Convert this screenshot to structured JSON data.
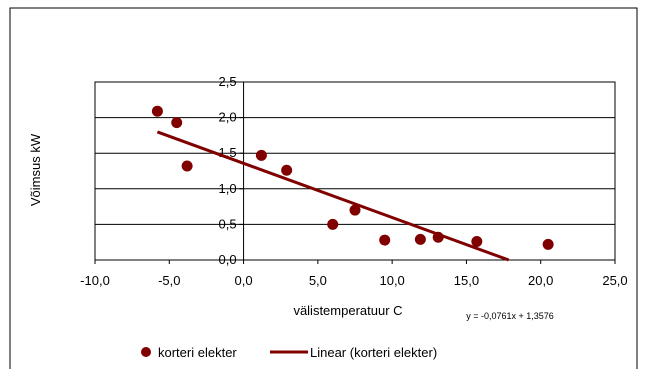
{
  "chart_data": {
    "type": "scatter",
    "title": "",
    "xlabel": "välistemperatuur C",
    "ylabel": "Võimsus kW",
    "xlim": [
      -10,
      25
    ],
    "ylim": [
      0,
      2.5
    ],
    "x_ticks": [
      "-10,0",
      "-5,0",
      "0,0",
      "5,0",
      "10,0",
      "15,0",
      "20,0",
      "25,0"
    ],
    "y_ticks": [
      "0,0",
      "0,5",
      "1,0",
      "1,5",
      "2,0",
      "2,5"
    ],
    "grid": "horizontal",
    "legend_position": "bottom",
    "series": [
      {
        "name": "korteri elekter",
        "marker": "circle",
        "color": "#800000",
        "points": [
          {
            "x": -5.8,
            "y": 2.09
          },
          {
            "x": -4.5,
            "y": 1.93
          },
          {
            "x": -3.8,
            "y": 1.32
          },
          {
            "x": 1.2,
            "y": 1.47
          },
          {
            "x": 2.9,
            "y": 1.26
          },
          {
            "x": 6.0,
            "y": 0.5
          },
          {
            "x": 7.5,
            "y": 0.7
          },
          {
            "x": 9.5,
            "y": 0.28
          },
          {
            "x": 11.9,
            "y": 0.29
          },
          {
            "x": 13.1,
            "y": 0.32
          },
          {
            "x": 15.7,
            "y": 0.26
          },
          {
            "x": 20.5,
            "y": 0.22
          }
        ]
      }
    ],
    "trendline": {
      "name": "Linear (korteri elekter)",
      "type": "linear",
      "slope": -0.0761,
      "intercept": 1.3576,
      "x_range": [
        -5.8,
        17.84
      ],
      "color": "#800000",
      "equation": "y = -0,0761x + 1,3576"
    }
  }
}
